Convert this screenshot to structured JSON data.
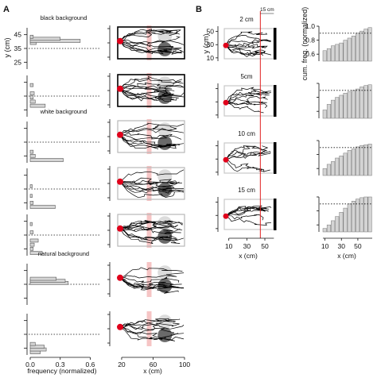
{
  "figure": {
    "panel_a_letter": "A",
    "panel_b_letter": "B"
  },
  "colors": {
    "trajectory": "#000000",
    "start_marker": "#e0001b",
    "target_band": "#f4b6b6",
    "threshold_line": "#e02020",
    "histogram_fill": "#d4d4d4",
    "cumulative_fill": "#d4d4d4",
    "stimulus_dark": "#6a6a6a",
    "stimulus_light": "#dcdcdc"
  },
  "chart_data": [
    {
      "id": "A-histograms",
      "type": "bar",
      "orientation": "horizontal",
      "xlabel": "frequency (normalized)",
      "ylabel": "y (cm)",
      "xticks": [
        "0.0",
        "0.3",
        "0.6"
      ],
      "xlim": [
        0,
        0.7
      ],
      "yticks": [
        "25",
        "35",
        "45"
      ],
      "ylim": [
        20,
        50
      ],
      "reference_y": 35,
      "panels": [
        {
          "label": "black background",
          "bins": [
            {
              "y": 39,
              "v": 0.06
            },
            {
              "y": 40.5,
              "v": 0.5
            },
            {
              "y": 42,
              "v": 0.3
            },
            {
              "y": 43.5,
              "v": 0.03
            }
          ]
        },
        {
          "label": "",
          "bins": [
            {
              "y": 28,
              "v": 0.15
            },
            {
              "y": 31,
              "v": 0.05
            },
            {
              "y": 34,
              "v": 0.03
            },
            {
              "y": 37,
              "v": 0.04
            },
            {
              "y": 43,
              "v": 0.03
            }
          ]
        },
        {
          "label": "white background",
          "bins": [
            {
              "y": 22,
              "v": 0.33
            },
            {
              "y": 25,
              "v": 0.05
            },
            {
              "y": 28,
              "v": 0.03
            }
          ]
        },
        {
          "label": "",
          "bins": [
            {
              "y": 22,
              "v": 0.25
            },
            {
              "y": 25,
              "v": 0.03
            },
            {
              "y": 30,
              "v": 0.02
            },
            {
              "y": 37,
              "v": 0.02
            }
          ]
        },
        {
          "label": "",
          "bins": [
            {
              "y": 22,
              "v": 0.12
            },
            {
              "y": 25,
              "v": 0.03
            },
            {
              "y": 28,
              "v": 0.04
            },
            {
              "y": 31,
              "v": 0.08
            },
            {
              "y": 37,
              "v": 0.03
            },
            {
              "y": 43,
              "v": 0.02
            }
          ]
        },
        {
          "label": "natural background",
          "bins": [
            {
              "y": 36,
              "v": 0.38
            },
            {
              "y": 37.5,
              "v": 0.35
            },
            {
              "y": 39,
              "v": 0.26
            }
          ]
        },
        {
          "label": "",
          "bins": [
            {
              "y": 22,
              "v": 0.1
            },
            {
              "y": 24,
              "v": 0.16
            },
            {
              "y": 26,
              "v": 0.14
            },
            {
              "y": 28,
              "v": 0.05
            }
          ]
        }
      ]
    },
    {
      "id": "A-trajectories",
      "type": "line",
      "xlabel": "x (cm)",
      "xticks": [
        "20",
        "60",
        "100"
      ],
      "xlim": [
        15,
        100
      ],
      "target_band_x": [
        52,
        58
      ],
      "panels": [
        {
          "frame": "black",
          "lines": 12
        },
        {
          "frame": "black",
          "lines": 12
        },
        {
          "frame": "gray",
          "lines": 10
        },
        {
          "frame": "gray",
          "lines": 10
        },
        {
          "frame": "gray",
          "lines": 12
        },
        {
          "frame": "none",
          "lines": 9
        },
        {
          "frame": "none",
          "lines": 9
        }
      ]
    },
    {
      "id": "B-trajectories",
      "type": "line",
      "xlabel": "x (cm)",
      "ylabel": "y (cm)",
      "xticks": [
        "10",
        "30",
        "50"
      ],
      "xlim": [
        5,
        65
      ],
      "yticks": [
        "10",
        "30",
        "50"
      ],
      "ylim": [
        5,
        58
      ],
      "threshold_x": 45,
      "threshold_annotation": "15 cm",
      "panels": [
        {
          "label": "2 cm",
          "lines": 10
        },
        {
          "label": "5cm",
          "lines": 8
        },
        {
          "label": "10 cm",
          "lines": 7
        },
        {
          "label": "15 cm",
          "lines": 8
        }
      ]
    },
    {
      "id": "B-cumulative",
      "type": "bar",
      "xlabel": "x (cm)",
      "ylabel": "cum. freq. (normalized)",
      "xticks": [
        "10",
        "30",
        "50"
      ],
      "yticks": [
        "0.6",
        "0.8",
        "1.0"
      ],
      "ylim": [
        0.5,
        1.0
      ],
      "reference_y": 0.9,
      "x": [
        10,
        15,
        20,
        25,
        30,
        35,
        40,
        45,
        50,
        55,
        60,
        65
      ],
      "series": [
        {
          "values": [
            0.65,
            0.68,
            0.72,
            0.74,
            0.76,
            0.8,
            0.83,
            0.86,
            0.9,
            0.93,
            0.96,
            0.98
          ]
        },
        {
          "values": [
            0.62,
            0.7,
            0.76,
            0.8,
            0.83,
            0.86,
            0.88,
            0.9,
            0.92,
            0.95,
            0.97,
            0.98
          ]
        },
        {
          "values": [
            0.6,
            0.66,
            0.7,
            0.75,
            0.78,
            0.82,
            0.86,
            0.88,
            0.91,
            0.93,
            0.94,
            0.95
          ]
        },
        {
          "values": [
            0.55,
            0.6,
            0.66,
            0.72,
            0.78,
            0.84,
            0.9,
            0.94,
            0.97,
            0.99,
            1.0,
            1.0
          ]
        }
      ]
    }
  ]
}
